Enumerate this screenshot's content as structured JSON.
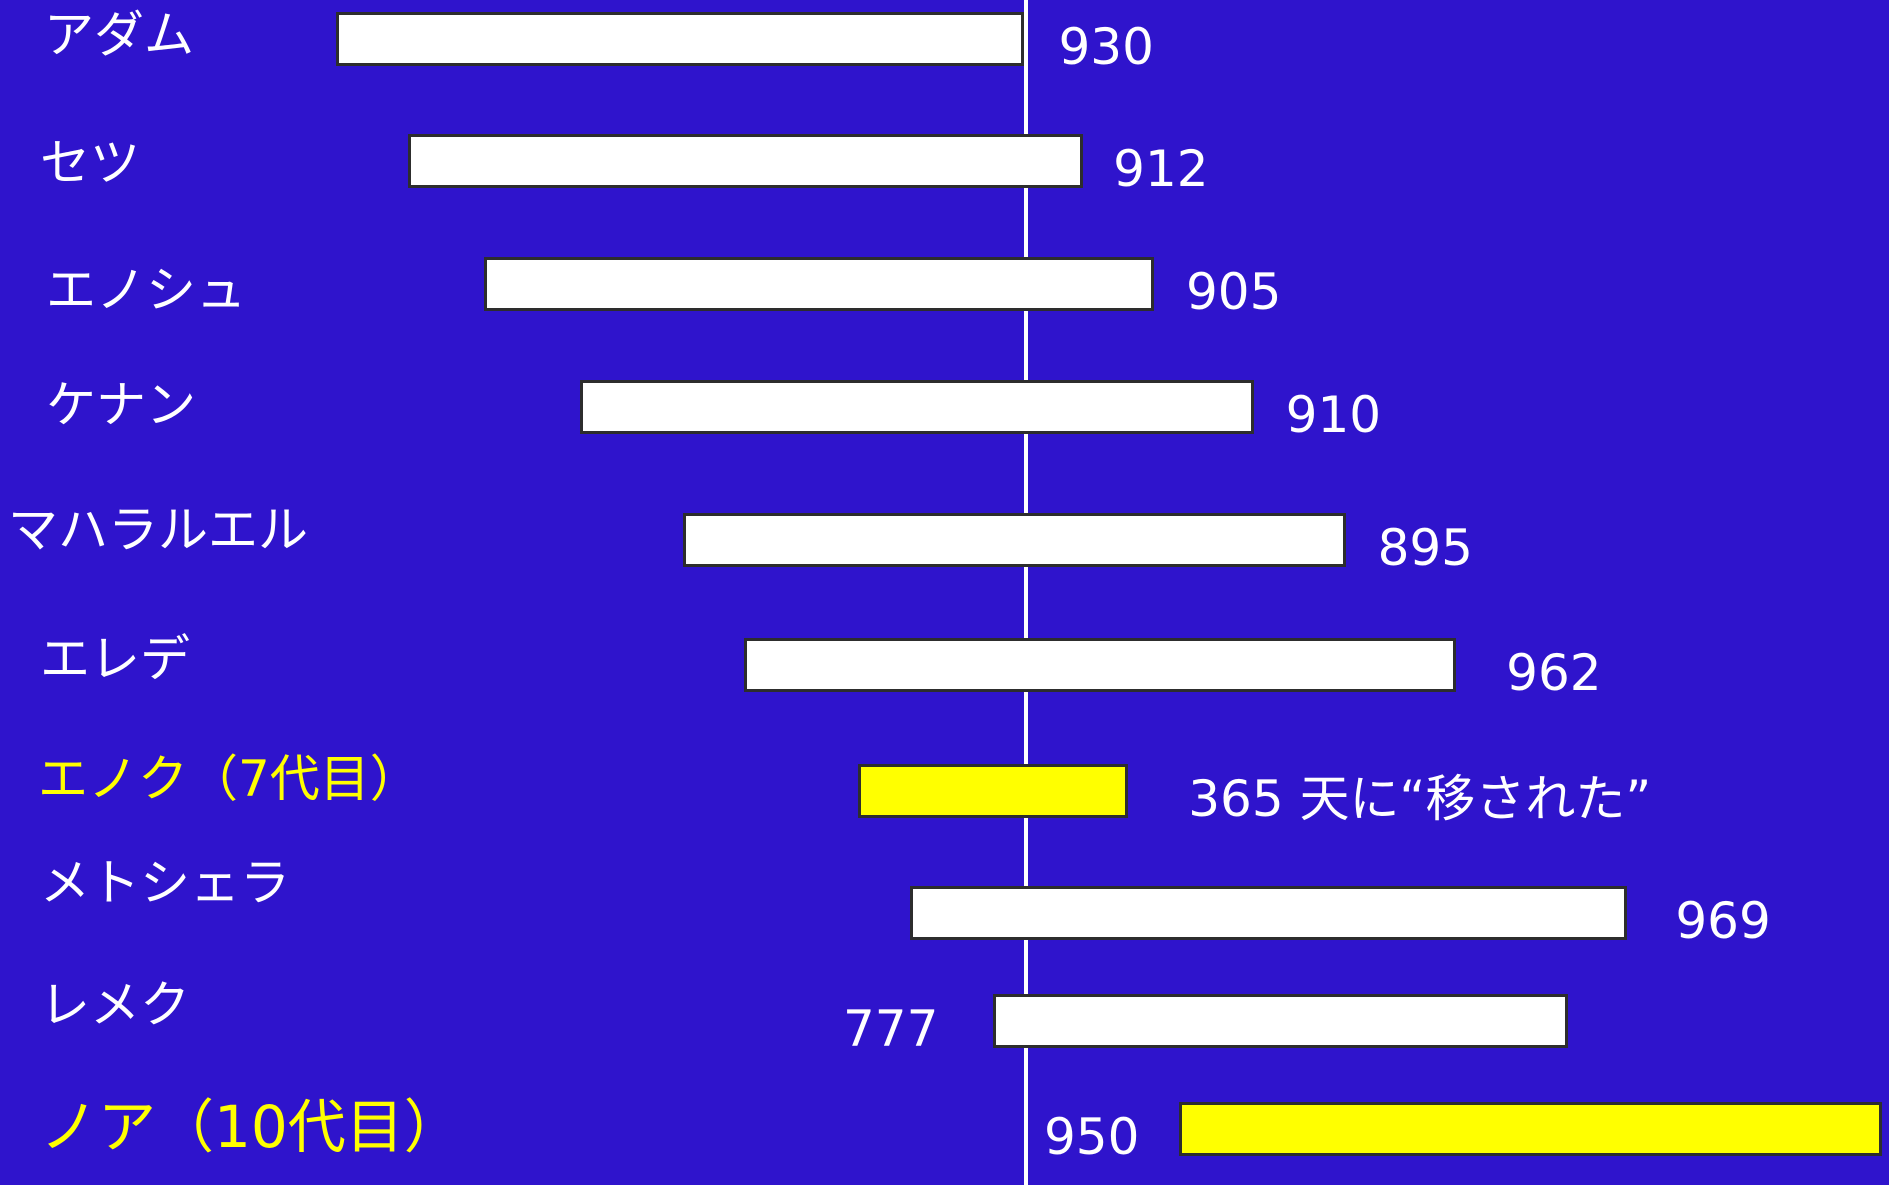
{
  "chart_data": {
    "type": "bar",
    "orientation": "horizontal",
    "categories": [
      "アダム",
      "セツ",
      "エノシュ",
      "ケナン",
      "マハラルエル",
      "エレデ",
      "エノク（7代目）",
      "メトシェラ",
      "レメク",
      "ノア（10代目）"
    ],
    "series": [
      {
        "values": [
          930,
          912,
          905,
          910,
          895,
          962,
          365,
          969,
          777,
          950
        ]
      }
    ],
    "value_labels": [
      "930",
      "912",
      "905",
      "910",
      "895",
      "962",
      "365  天に“移された”",
      "969",
      "777",
      "950"
    ],
    "highlighted": [
      "エノク（7代目）",
      "ノア（10代目）"
    ],
    "colors": {
      "background": "#2f14cc",
      "bar": "#ffffff",
      "highlight": "#ffff00",
      "bar_border": "#2d2d2d",
      "label": "#ffffff"
    }
  }
}
